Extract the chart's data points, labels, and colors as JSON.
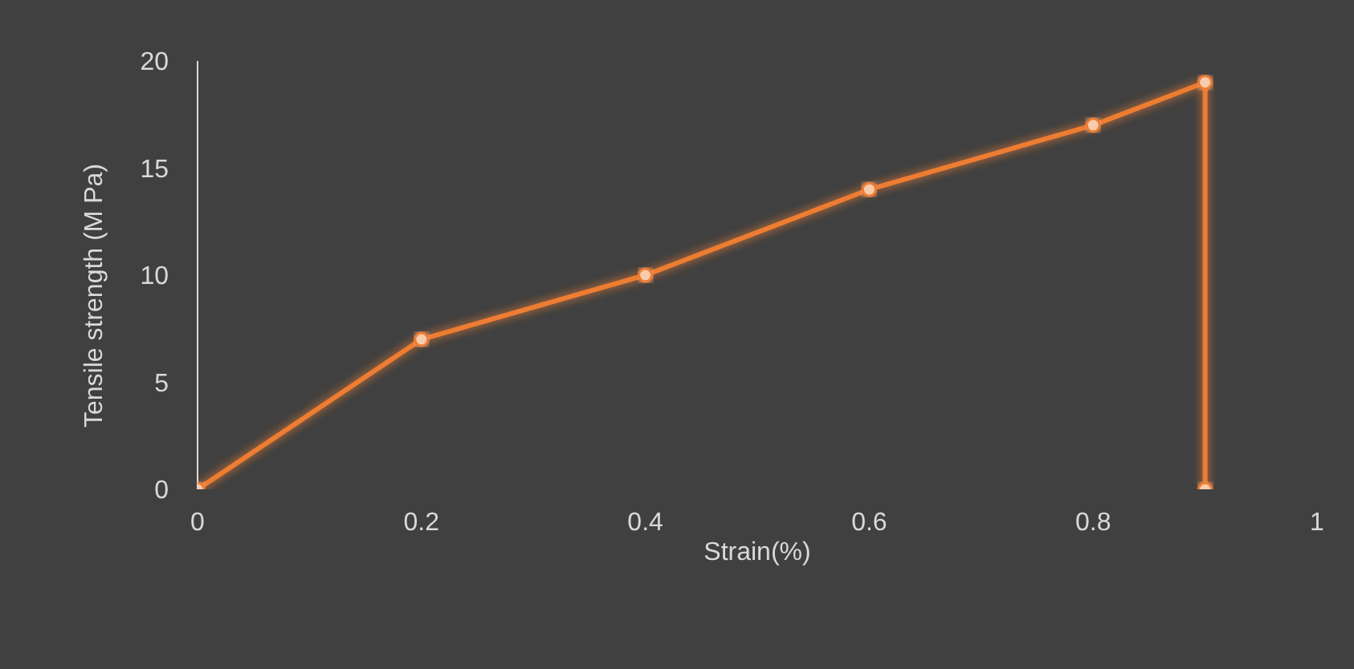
{
  "chart_data": {
    "type": "line",
    "xlabel": "Strain(%)",
    "ylabel": "Tensile strength (M Pa)",
    "x": [
      0,
      0.2,
      0.4,
      0.6,
      0.8,
      0.9,
      0.9
    ],
    "series": [
      {
        "color": "#ed7d31",
        "values": [
          0,
          7,
          10,
          14,
          17,
          19,
          0
        ]
      }
    ],
    "xlim": [
      0,
      1
    ],
    "xticks": [
      0,
      0.2,
      0.4,
      0.6,
      0.8,
      1
    ],
    "ylim": [
      0,
      20
    ],
    "yticks": [
      0,
      5,
      10,
      15,
      20
    ],
    "marker": "circle",
    "grid": false,
    "legend": false
  }
}
